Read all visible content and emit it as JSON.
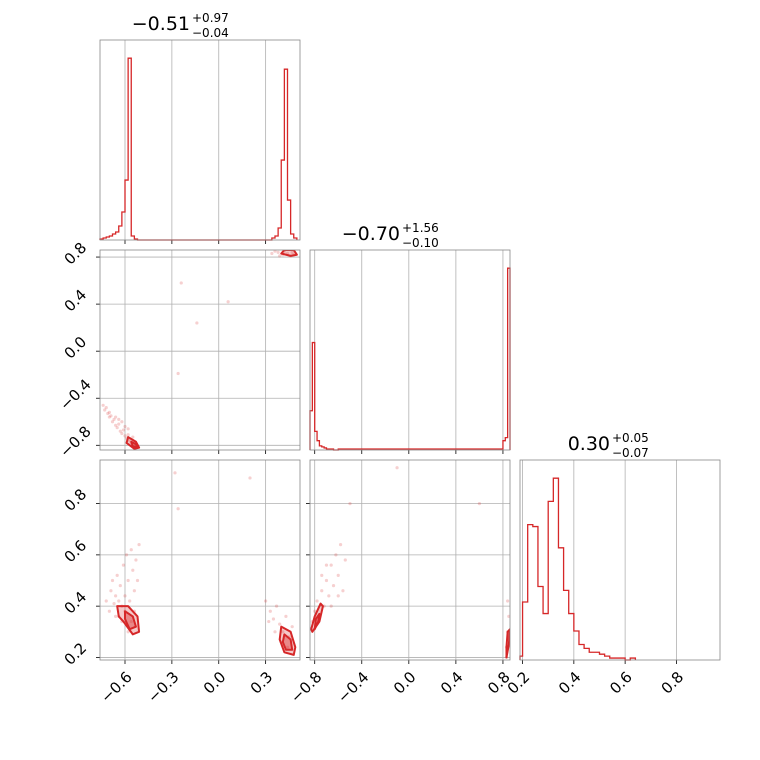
{
  "chart_data": {
    "type": "corner",
    "color": "#d62728",
    "grid": true,
    "parameters": [
      {
        "title": {
          "median": "−0.51",
          "plus": "+0.97",
          "minus": "−0.04"
        },
        "tick_values": [
          -0.6,
          -0.3,
          0.0,
          0.3
        ],
        "tick_labels": [
          "−0.6",
          "−0.3",
          "0.0",
          "0.3"
        ],
        "range": [
          -0.76,
          0.52
        ],
        "hist": {
          "bin_edges": [
            -0.76,
            -0.74,
            -0.72,
            -0.7,
            -0.68,
            -0.66,
            -0.64,
            -0.62,
            -0.6,
            -0.58,
            -0.56,
            -0.54,
            -0.52,
            -0.5,
            -0.48,
            -0.46,
            0.34,
            0.36,
            0.38,
            0.4,
            0.42,
            0.44,
            0.46,
            0.48,
            0.5
          ],
          "counts": [
            1,
            2,
            3,
            4,
            6,
            8,
            14,
            28,
            60,
            182,
            4,
            1,
            0,
            0,
            0,
            0,
            2,
            4,
            12,
            80,
            171,
            40,
            6,
            2
          ]
        }
      },
      {
        "title": {
          "median": "−0.70",
          "plus": "+1.56",
          "minus": "−0.10"
        },
        "tick_values": [
          -0.8,
          -0.4,
          0.0,
          0.4,
          0.8
        ],
        "tick_labels": [
          "−0.8",
          "−0.4",
          "0.0",
          "0.4",
          "0.8"
        ],
        "range": [
          -0.84,
          0.86
        ],
        "hist": {
          "bin_edges": [
            -0.84,
            -0.82,
            -0.8,
            -0.78,
            -0.76,
            -0.74,
            -0.72,
            -0.7,
            -0.68,
            -0.66,
            -0.64,
            -0.62,
            -0.6,
            0.8,
            0.82,
            0.84,
            0.86
          ],
          "counts": [
            38,
            104,
            18,
            9,
            4,
            3,
            2,
            1,
            1,
            1,
            0,
            0,
            1,
            9,
            12,
            176
          ]
        }
      },
      {
        "title": {
          "median": "0.30",
          "plus": "+0.05",
          "minus": "−0.07"
        },
        "tick_values": [
          0.2,
          0.4,
          0.6,
          0.8
        ],
        "tick_labels": [
          "0.2",
          "0.4",
          "0.6",
          "0.8"
        ],
        "range": [
          0.19,
          0.97
        ],
        "hist": {
          "bin_edges": [
            0.19,
            0.2,
            0.22,
            0.24,
            0.26,
            0.28,
            0.3,
            0.32,
            0.34,
            0.36,
            0.38,
            0.4,
            0.42,
            0.44,
            0.46,
            0.48,
            0.5,
            0.52,
            0.54,
            0.6,
            0.62,
            0.64
          ],
          "counts": [
            2,
            30,
            70,
            69,
            38,
            24,
            82,
            94,
            58,
            36,
            24,
            15,
            8,
            6,
            4,
            4,
            3,
            2,
            1,
            0,
            1
          ]
        }
      }
    ],
    "joint": [
      {
        "x_param": 0,
        "y_param": 1,
        "points": [
          [
            -0.74,
            -0.46
          ],
          [
            -0.73,
            -0.5
          ],
          [
            -0.72,
            -0.48
          ],
          [
            -0.71,
            -0.53
          ],
          [
            -0.7,
            -0.56
          ],
          [
            -0.69,
            -0.55
          ],
          [
            -0.68,
            -0.6
          ],
          [
            -0.67,
            -0.58
          ],
          [
            -0.66,
            -0.63
          ],
          [
            -0.65,
            -0.65
          ],
          [
            -0.64,
            -0.62
          ],
          [
            -0.63,
            -0.68
          ],
          [
            -0.62,
            -0.7
          ],
          [
            -0.61,
            -0.67
          ],
          [
            -0.6,
            -0.72
          ],
          [
            -0.59,
            -0.74
          ],
          [
            -0.58,
            -0.71
          ],
          [
            -0.57,
            -0.76
          ],
          [
            -0.56,
            -0.78
          ],
          [
            -0.55,
            -0.77
          ],
          [
            -0.54,
            -0.8
          ],
          [
            -0.53,
            -0.79
          ],
          [
            -0.52,
            -0.81
          ],
          [
            -0.62,
            -0.6
          ],
          [
            -0.66,
            -0.56
          ],
          [
            -0.7,
            -0.52
          ],
          [
            -0.58,
            -0.66
          ],
          [
            -0.55,
            -0.73
          ],
          [
            -0.6,
            -0.64
          ],
          [
            -0.64,
            -0.58
          ],
          [
            -0.24,
            0.58
          ],
          [
            -0.14,
            0.24
          ],
          [
            0.06,
            0.42
          ],
          [
            -0.26,
            -0.19
          ],
          [
            0.34,
            0.83
          ],
          [
            0.38,
            0.84
          ],
          [
            0.41,
            0.82
          ],
          [
            0.44,
            0.83
          ],
          [
            0.46,
            0.81
          ],
          [
            0.48,
            0.82
          ],
          [
            0.36,
            0.85
          ],
          [
            0.42,
            0.85
          ],
          [
            0.47,
            0.84
          ],
          [
            0.39,
            0.81
          ]
        ],
        "contours": [
          [
            [
              -0.58,
              -0.73
            ],
            [
              -0.53,
              -0.77
            ],
            [
              -0.51,
              -0.82
            ],
            [
              -0.54,
              -0.83
            ],
            [
              -0.59,
              -0.78
            ]
          ],
          [
            [
              -0.56,
              -0.77
            ],
            [
              -0.53,
              -0.79
            ],
            [
              -0.52,
              -0.82
            ],
            [
              -0.55,
              -0.81
            ]
          ],
          [
            [
              0.4,
              0.83
            ],
            [
              0.46,
              0.81
            ],
            [
              0.5,
              0.82
            ],
            [
              0.48,
              0.86
            ],
            [
              0.42,
              0.86
            ]
          ]
        ]
      },
      {
        "x_param": 0,
        "y_param": 2,
        "points": [
          [
            -0.72,
            0.42
          ],
          [
            -0.7,
            0.38
          ],
          [
            -0.69,
            0.46
          ],
          [
            -0.68,
            0.5
          ],
          [
            -0.67,
            0.41
          ],
          [
            -0.66,
            0.44
          ],
          [
            -0.65,
            0.52
          ],
          [
            -0.64,
            0.36
          ],
          [
            -0.63,
            0.48
          ],
          [
            -0.62,
            0.4
          ],
          [
            -0.61,
            0.56
          ],
          [
            -0.6,
            0.44
          ],
          [
            -0.59,
            0.6
          ],
          [
            -0.58,
            0.5
          ],
          [
            -0.57,
            0.42
          ],
          [
            -0.56,
            0.62
          ],
          [
            -0.55,
            0.54
          ],
          [
            -0.54,
            0.46
          ],
          [
            -0.53,
            0.58
          ],
          [
            -0.52,
            0.5
          ],
          [
            -0.51,
            0.64
          ],
          [
            -0.62,
            0.34
          ],
          [
            -0.58,
            0.3
          ],
          [
            -0.6,
            0.38
          ],
          [
            -0.56,
            0.34
          ],
          [
            -0.66,
            0.36
          ],
          [
            -0.54,
            0.38
          ],
          [
            -0.64,
            0.42
          ],
          [
            -0.28,
            0.92
          ],
          [
            -0.26,
            0.78
          ],
          [
            0.2,
            0.9
          ],
          [
            0.3,
            0.42
          ],
          [
            0.33,
            0.38
          ],
          [
            0.35,
            0.35
          ],
          [
            0.37,
            0.4
          ],
          [
            0.39,
            0.33
          ],
          [
            0.41,
            0.3
          ],
          [
            0.43,
            0.36
          ],
          [
            0.45,
            0.28
          ],
          [
            0.47,
            0.32
          ],
          [
            0.36,
            0.3
          ],
          [
            0.4,
            0.26
          ],
          [
            0.44,
            0.24
          ],
          [
            0.32,
            0.34
          ]
        ],
        "contours": [
          [
            [
              -0.65,
              0.4
            ],
            [
              -0.58,
              0.4
            ],
            [
              -0.52,
              0.36
            ],
            [
              -0.51,
              0.3
            ],
            [
              -0.55,
              0.29
            ],
            [
              -0.61,
              0.34
            ],
            [
              -0.64,
              0.36
            ]
          ],
          [
            [
              -0.6,
              0.38
            ],
            [
              -0.55,
              0.36
            ],
            [
              -0.53,
              0.32
            ],
            [
              -0.57,
              0.31
            ],
            [
              -0.6,
              0.35
            ]
          ],
          [
            [
              0.4,
              0.32
            ],
            [
              0.46,
              0.3
            ],
            [
              0.49,
              0.24
            ],
            [
              0.48,
              0.21
            ],
            [
              0.42,
              0.22
            ],
            [
              0.39,
              0.27
            ]
          ],
          [
            [
              0.42,
              0.29
            ],
            [
              0.46,
              0.27
            ],
            [
              0.47,
              0.23
            ],
            [
              0.43,
              0.23
            ],
            [
              0.41,
              0.26
            ]
          ]
        ]
      },
      {
        "x_param": 1,
        "y_param": 2,
        "points": [
          [
            -0.82,
            0.34
          ],
          [
            -0.8,
            0.38
          ],
          [
            -0.78,
            0.42
          ],
          [
            -0.76,
            0.36
          ],
          [
            -0.74,
            0.46
          ],
          [
            -0.72,
            0.4
          ],
          [
            -0.7,
            0.5
          ],
          [
            -0.68,
            0.44
          ],
          [
            -0.66,
            0.56
          ],
          [
            -0.64,
            0.48
          ],
          [
            -0.62,
            0.6
          ],
          [
            -0.6,
            0.52
          ],
          [
            -0.58,
            0.64
          ],
          [
            -0.56,
            0.46
          ],
          [
            -0.54,
            0.58
          ],
          [
            -0.74,
            0.52
          ],
          [
            -0.7,
            0.56
          ],
          [
            -0.66,
            0.4
          ],
          [
            -0.78,
            0.33
          ],
          [
            -0.6,
            0.44
          ],
          [
            -0.1,
            0.94
          ],
          [
            -0.5,
            0.8
          ],
          [
            0.6,
            0.8
          ],
          [
            0.83,
            0.24
          ],
          [
            0.84,
            0.3
          ],
          [
            0.85,
            0.36
          ],
          [
            0.84,
            0.42
          ],
          [
            0.83,
            0.2
          ]
        ],
        "contours": [
          [
            [
              -0.82,
              0.3
            ],
            [
              -0.76,
              0.34
            ],
            [
              -0.73,
              0.4
            ],
            [
              -0.75,
              0.41
            ],
            [
              -0.8,
              0.36
            ],
            [
              -0.83,
              0.31
            ]
          ],
          [
            [
              -0.8,
              0.31
            ],
            [
              -0.77,
              0.34
            ],
            [
              -0.76,
              0.37
            ],
            [
              -0.79,
              0.35
            ]
          ],
          [
            [
              0.83,
              0.2
            ],
            [
              0.85,
              0.25
            ],
            [
              0.86,
              0.31
            ],
            [
              0.84,
              0.3
            ],
            [
              0.83,
              0.24
            ]
          ]
        ]
      }
    ]
  }
}
